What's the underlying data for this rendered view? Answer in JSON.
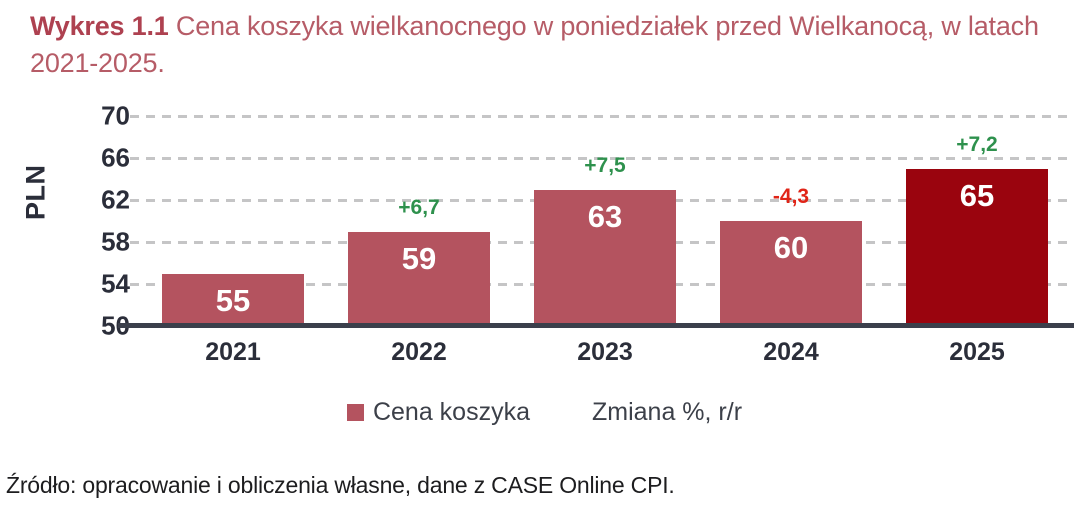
{
  "title": {
    "prefix": "Wykres 1.1",
    "text": " Cena koszyka wielkanocnego w poniedziałek przed Wielkanocą, w latach 2021-2025.",
    "prefix_color": "#ae4150",
    "text_color": "#b65c67"
  },
  "legend": {
    "series1_label": "Cena koszyka",
    "series2_label": "Zmiana %, r/r"
  },
  "source_note": "Źródło: opracowanie i obliczenia własne, dane z CASE Online CPI.",
  "chart_data": {
    "type": "bar",
    "title": "Cena koszyka wielkanocnego w poniedziałek przed Wielkanocą, w latach 2021-2025",
    "categories": [
      "2021",
      "2022",
      "2023",
      "2024",
      "2025"
    ],
    "values": [
      55,
      59,
      63,
      60,
      65
    ],
    "change_labels": [
      "",
      "+6,7",
      "+7,5",
      "-4,3",
      "+7,2"
    ],
    "xlabel": "",
    "ylabel": "PLN",
    "ylim": [
      50,
      70
    ],
    "yticks": [
      50,
      54,
      58,
      62,
      66,
      70
    ],
    "grid": "horizontal-dashed",
    "legend_position": "bottom",
    "series_name": "Cena koszyka",
    "change_series_name": "Zmiana %, r/r",
    "colors": {
      "bar": "#b4535f",
      "bar_highlight": "#9a040e",
      "highlight_category": "2025",
      "positive_change": "#2e914d",
      "negative_change": "#e02417",
      "gridline": "#c5c5c6",
      "axis_line": "#3b3f4b",
      "tick_text": "#2b2e3a"
    }
  }
}
